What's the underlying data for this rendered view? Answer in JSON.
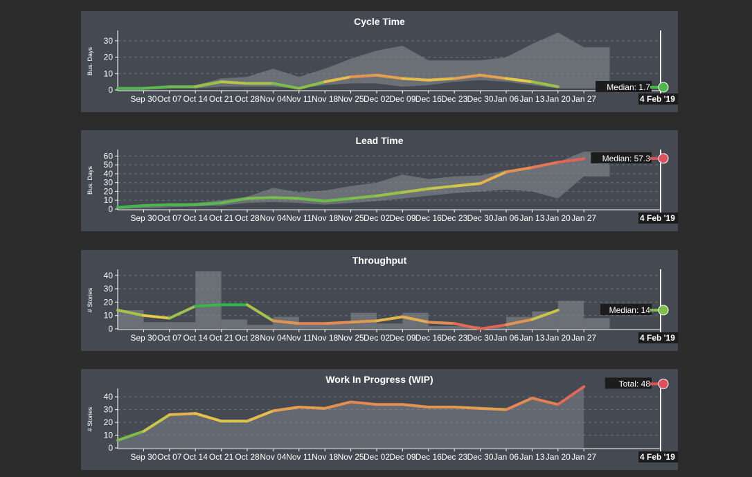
{
  "colors": {
    "page_bg": "#2b2b2b",
    "panel_bg": "#454a52",
    "area": "#8a8f96",
    "good": "#2fb54c",
    "mid": "#e6c84a",
    "bad": "#e0505a",
    "end_marker_text_bg": "#1c1c1c"
  },
  "x_axis": {
    "tick_labels": [
      "Sep 30",
      "Oct 07",
      "Oct 14",
      "Oct 21",
      "Oct 28",
      "Nov 04",
      "Nov 11",
      "Nov 18",
      "Nov 25",
      "Dec 02",
      "Dec 09",
      "Dec 16",
      "Dec 23",
      "Dec 30",
      "Jan 06",
      "Jan 13",
      "Jan 20",
      "Jan 27"
    ],
    "end_marker": "4 Feb '19"
  },
  "chart_data": [
    {
      "type": "line",
      "title": "Cycle Time",
      "ylabel": "Bus. Days",
      "ylim": [
        0,
        35
      ],
      "yticks": [
        0,
        10,
        20,
        30
      ],
      "x": [
        "Sep 23",
        "Sep 30",
        "Oct 07",
        "Oct 14",
        "Oct 21",
        "Oct 28",
        "Nov 04",
        "Nov 11",
        "Nov 18",
        "Nov 25",
        "Dec 02",
        "Dec 09",
        "Dec 16",
        "Dec 23",
        "Dec 30",
        "Jan 06",
        "Jan 13",
        "Jan 20"
      ],
      "series": [
        {
          "values": [
            1,
            1,
            2,
            2,
            5,
            4,
            4,
            1,
            5,
            8,
            9,
            7,
            6,
            7,
            9,
            7,
            5,
            2
          ]
        }
      ],
      "band": {
        "upper": [
          1,
          1,
          2,
          3,
          7,
          8,
          13,
          8,
          13,
          19,
          24,
          27,
          18,
          18,
          18,
          20,
          28,
          35,
          26,
          26
        ],
        "lower": [
          0,
          0,
          1,
          1,
          2,
          2,
          2,
          1,
          3,
          4,
          4,
          2,
          3,
          5,
          6,
          5,
          3,
          1,
          1,
          1
        ]
      },
      "median_label": "Median: 1.7",
      "median_value": 1.7
    },
    {
      "type": "line",
      "title": "Lead Time",
      "ylabel": "Bus. Days",
      "ylim": [
        0,
        65
      ],
      "yticks": [
        0,
        10,
        20,
        30,
        40,
        50,
        60
      ],
      "x": [
        "Sep 23",
        "Sep 30",
        "Oct 07",
        "Oct 14",
        "Oct 21",
        "Oct 28",
        "Nov 04",
        "Nov 11",
        "Nov 18",
        "Nov 25",
        "Dec 02",
        "Dec 09",
        "Dec 16",
        "Dec 23",
        "Dec 30",
        "Jan 06",
        "Jan 13",
        "Jan 20",
        "Jan 27"
      ],
      "series": [
        {
          "values": [
            2,
            4,
            5,
            5,
            7,
            12,
            13,
            12,
            9,
            12,
            15,
            19,
            23,
            26,
            29,
            42,
            47,
            53,
            57
          ]
        }
      ],
      "band": {
        "upper": [
          2,
          4,
          6,
          7,
          10,
          14,
          24,
          19,
          21,
          26,
          30,
          39,
          34,
          37,
          38,
          44,
          47,
          53,
          65,
          65
        ],
        "lower": [
          0,
          1,
          2,
          3,
          4,
          7,
          8,
          7,
          5,
          7,
          9,
          12,
          15,
          18,
          20,
          22,
          20,
          12,
          37,
          37
        ]
      },
      "median_label": "Median: 57.3",
      "median_value": 57.3
    },
    {
      "type": "line",
      "title": "Throughput",
      "ylabel": "# Stories",
      "ylim": [
        0,
        43
      ],
      "yticks": [
        0,
        10,
        20,
        30,
        40
      ],
      "x": [
        "Sep 23",
        "Sep 30",
        "Oct 07",
        "Oct 14",
        "Oct 21",
        "Oct 28",
        "Nov 04",
        "Nov 11",
        "Nov 18",
        "Nov 25",
        "Dec 02",
        "Dec 09",
        "Dec 16",
        "Dec 23",
        "Dec 30",
        "Jan 06",
        "Jan 13",
        "Jan 20"
      ],
      "series": [
        {
          "values": [
            14,
            10,
            8,
            17,
            18,
            18,
            6,
            4,
            4,
            5,
            6,
            9,
            5,
            4,
            0,
            3,
            7,
            14
          ]
        }
      ],
      "bars": [
        14,
        5,
        5,
        43,
        7,
        3,
        9,
        4,
        4,
        12,
        4,
        12,
        2,
        2,
        1,
        9,
        13,
        21,
        8
      ],
      "median_label": "Median: 14",
      "median_value": 14
    },
    {
      "type": "area",
      "title": "Work In Progress (WIP)",
      "ylabel": "# Stories",
      "ylim": [
        0,
        45
      ],
      "yticks": [
        0,
        10,
        20,
        30,
        40
      ],
      "x": [
        "Sep 23",
        "Sep 30",
        "Oct 07",
        "Oct 14",
        "Oct 21",
        "Oct 28",
        "Nov 04",
        "Nov 11",
        "Nov 18",
        "Nov 25",
        "Dec 02",
        "Dec 09",
        "Dec 16",
        "Dec 23",
        "Dec 30",
        "Jan 06",
        "Jan 13",
        "Jan 20",
        "Jan 27"
      ],
      "series": [
        {
          "values": [
            6,
            13,
            26,
            27,
            21,
            21,
            29,
            32,
            31,
            36,
            34,
            34,
            32,
            32,
            31,
            30,
            39,
            34,
            48
          ]
        }
      ],
      "total_label": "Total: 48",
      "total_value": 48
    }
  ]
}
